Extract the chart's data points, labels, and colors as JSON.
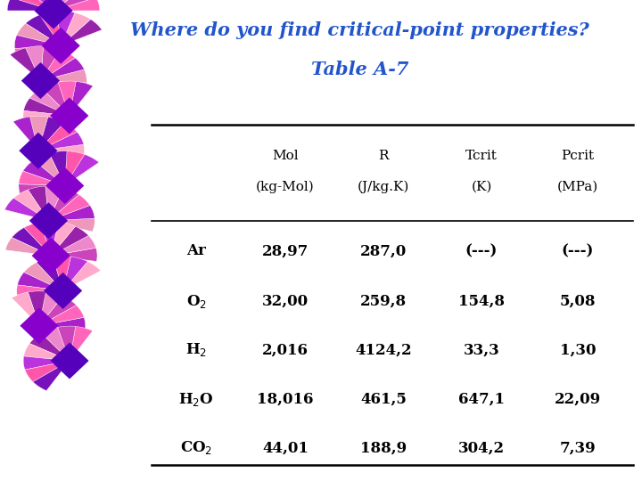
{
  "title_line1": "Where do you find critical-point properties?",
  "title_line2": "Table A-7",
  "title_color": "#2255CC",
  "bg_color": "#FFFFFF",
  "col_headers_top": [
    "Mol",
    "R",
    "Tcrit",
    "Pcrit"
  ],
  "col_headers_bot": [
    "(kg-Mol)",
    "(J/kg.K)",
    "(K)",
    "(MPa)"
  ],
  "row_labels": [
    "Ar",
    "O$_2$",
    "H$_2$",
    "H$_2$O",
    "CO$_2$"
  ],
  "table_data": [
    [
      "28,97",
      "287,0",
      "(---)",
      "(---)"
    ],
    [
      "32,00",
      "259,8",
      "154,8",
      "5,08"
    ],
    [
      "2,016",
      "4124,2",
      "33,3",
      "1,30"
    ],
    [
      "18,016",
      "461,5",
      "647,1",
      "22,09"
    ],
    [
      "44,01",
      "188,9",
      "304,2",
      "7,39"
    ]
  ],
  "text_color": "#000000",
  "line_color": "#000000",
  "spiral_colors_fan": [
    "#FF66BB",
    "#CC44BB",
    "#FF88CC",
    "#9933AA",
    "#EE55AA",
    "#BB22CC",
    "#FF99BB",
    "#AA11BB"
  ],
  "spiral_colors_diamond": [
    "#6600BB",
    "#8800BB",
    "#5500AA",
    "#7700CC"
  ],
  "spiral_pink": "#FF88AA",
  "spiral_purple": "#8822CC",
  "spiral_lavender": "#BB88DD",
  "spiral_salmon": "#FF99AA"
}
